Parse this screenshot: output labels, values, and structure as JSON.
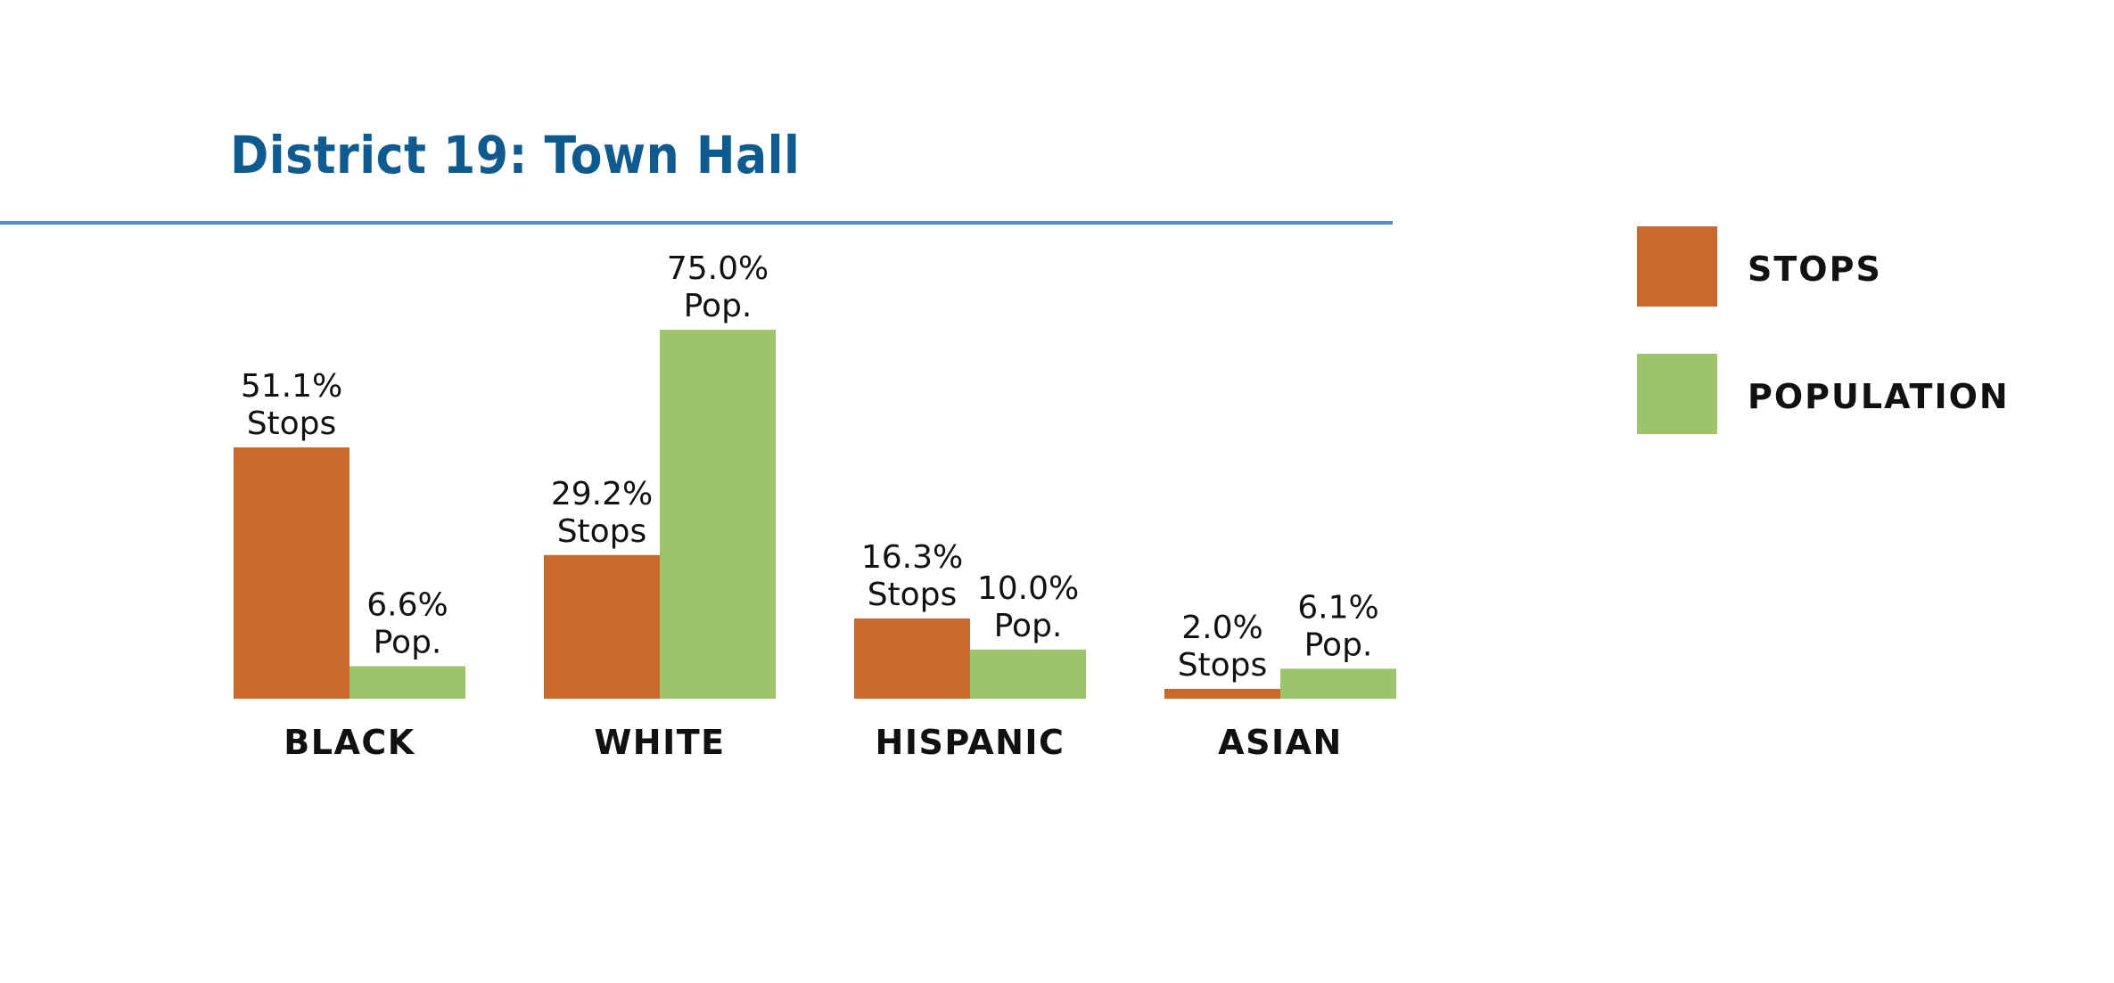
{
  "colors": {
    "stops": "#c8692d",
    "population": "#9dc46b",
    "title": "#0f5b8f",
    "rule": "#4a8fc7"
  },
  "legend": {
    "stops": "STOPS",
    "population": "POPULATION"
  },
  "chart_data": {
    "type": "bar",
    "title": "District 19: Town Hall",
    "categories": [
      "BLACK",
      "WHITE",
      "HISPANIC",
      "ASIAN"
    ],
    "series": [
      {
        "name": "STOPS",
        "values": [
          51.1,
          29.2,
          16.3,
          2.0
        ],
        "labels": [
          "51.1%",
          "29.2%",
          "16.3%",
          "2.0%"
        ],
        "suffix": "Stops"
      },
      {
        "name": "POPULATION",
        "values": [
          6.6,
          75.0,
          10.0,
          6.1
        ],
        "labels": [
          "6.6%",
          "75.0%",
          "10.0%",
          "6.1%"
        ],
        "suffix": "Pop."
      }
    ],
    "ylim": [
      0,
      75
    ],
    "grid": false,
    "legend_position": "right"
  }
}
